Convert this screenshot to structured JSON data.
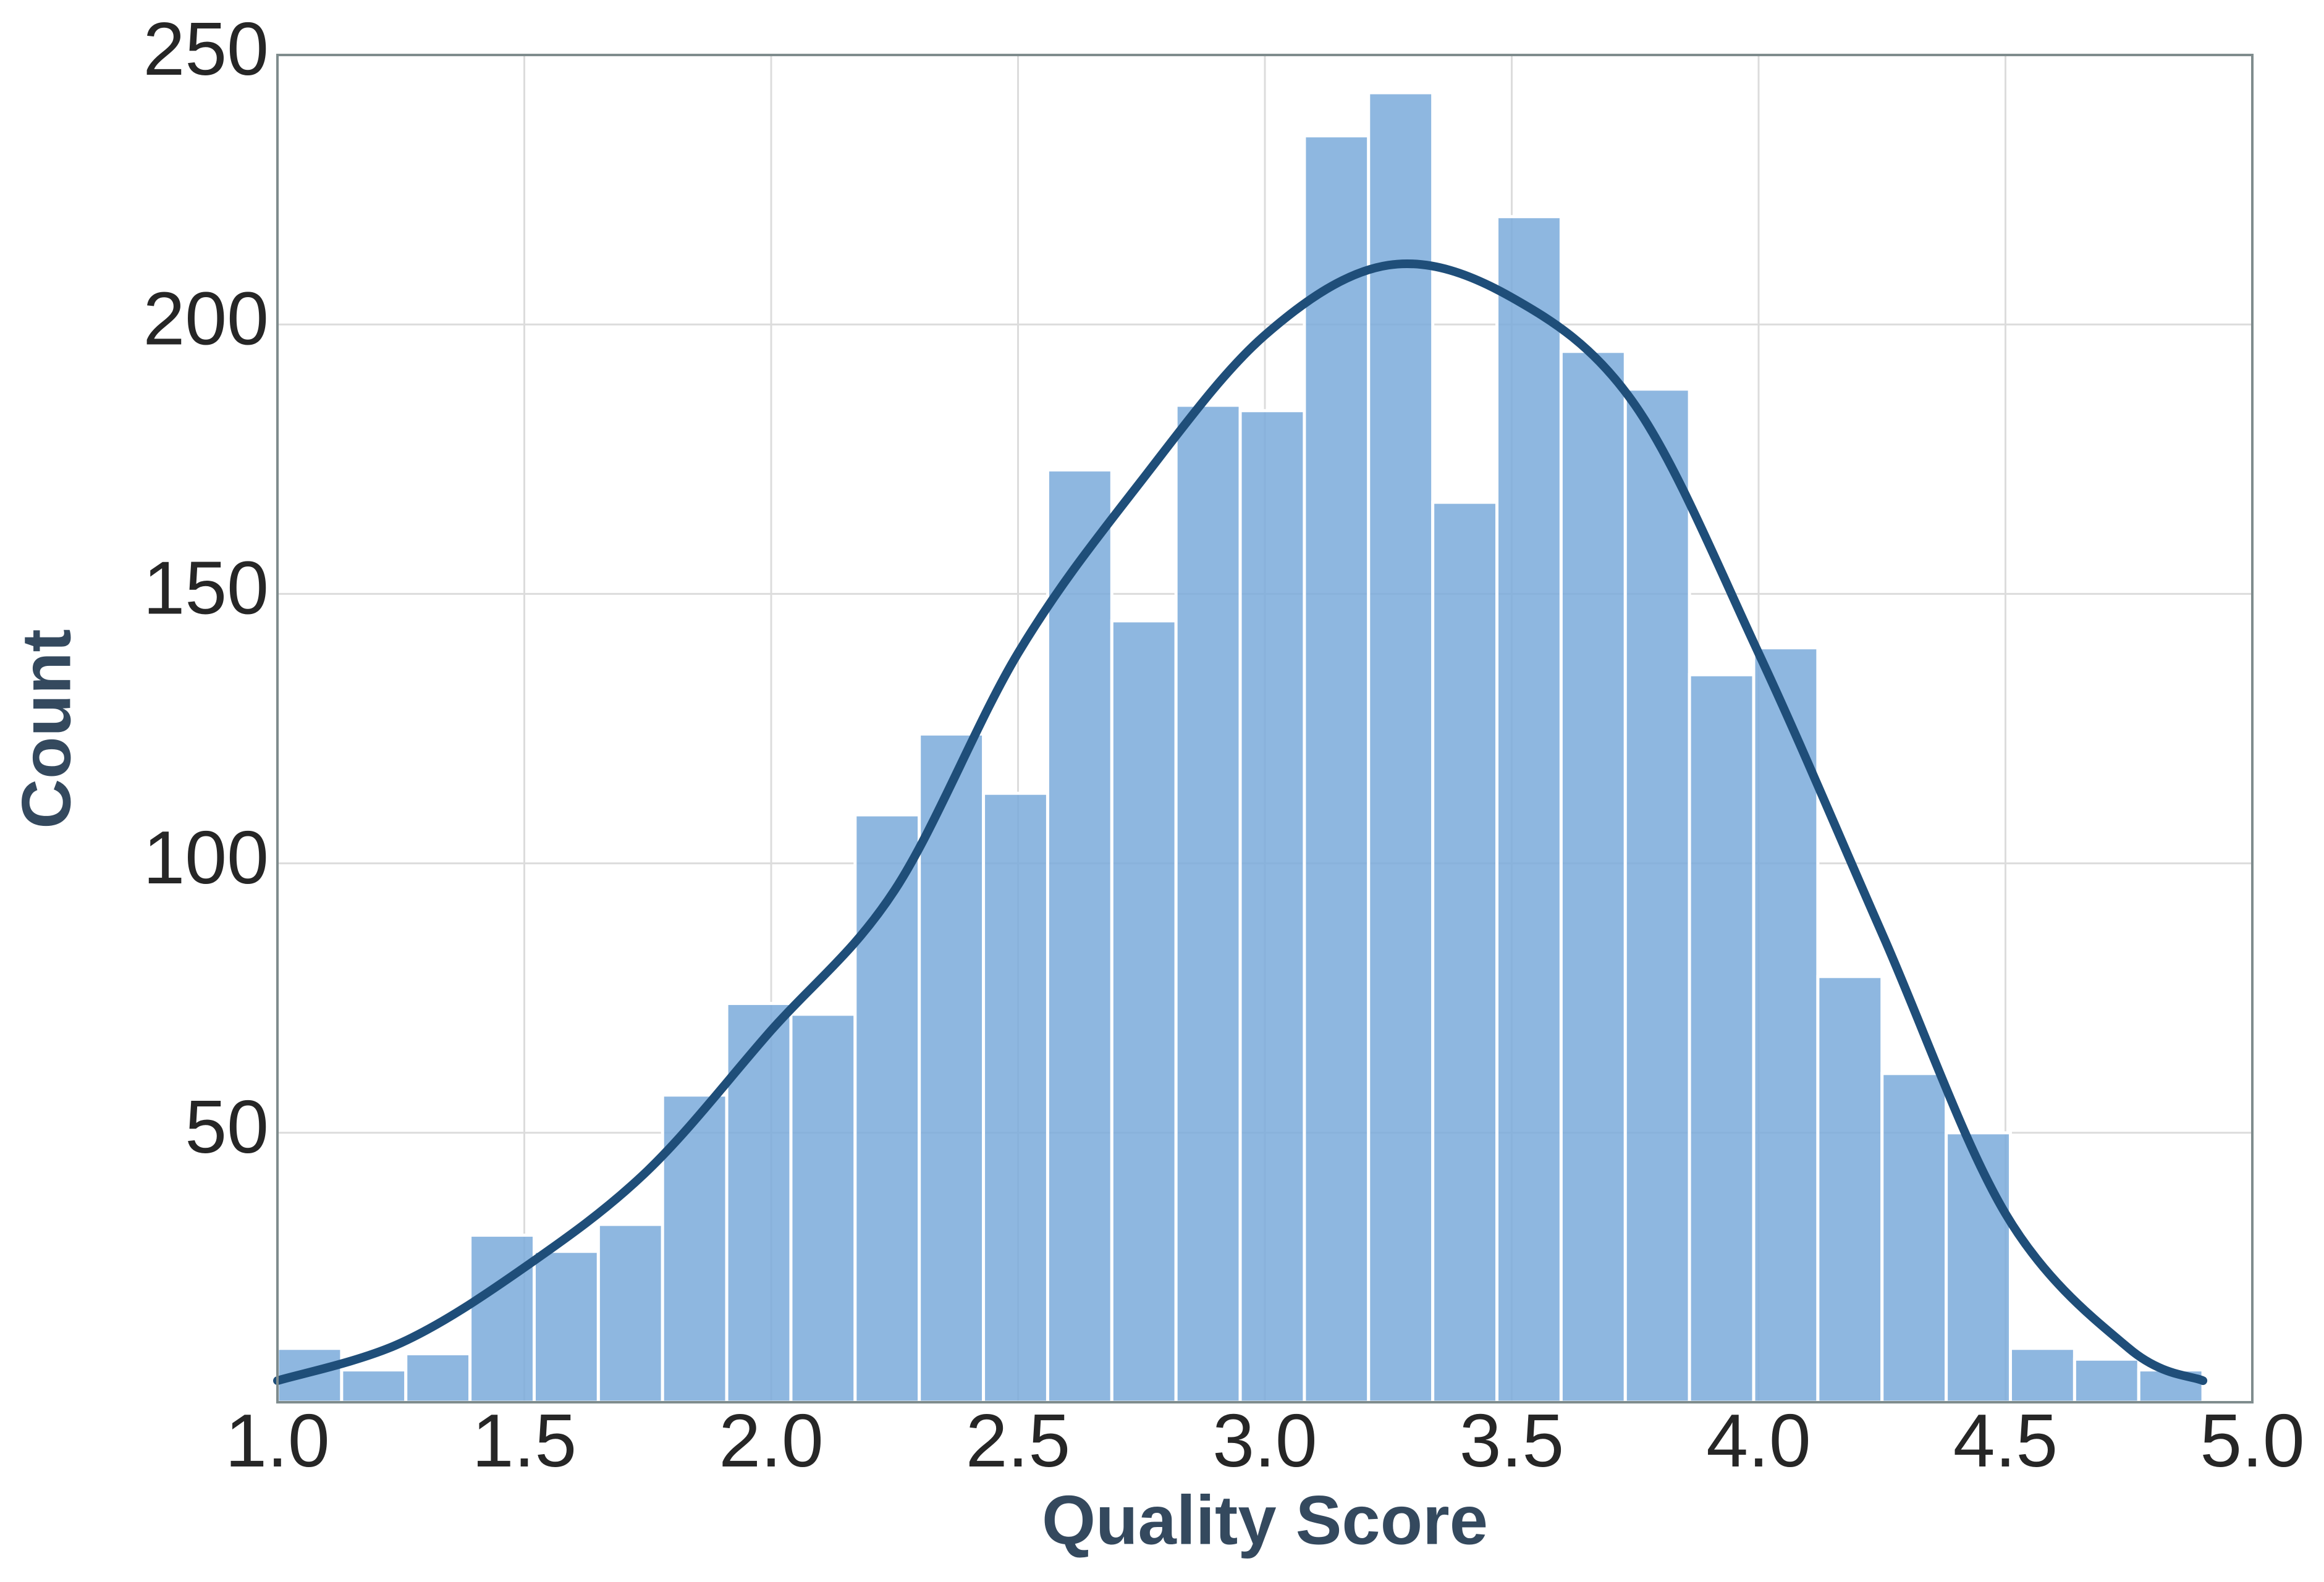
{
  "chart_data": {
    "type": "histogram",
    "x_label": "Quality Score",
    "y_label": "Count",
    "bins": [
      1.0,
      1.13,
      1.26,
      1.39,
      1.52,
      1.65,
      1.78,
      1.91,
      2.04,
      2.17,
      2.3,
      2.43,
      2.56,
      2.69,
      2.82,
      2.95,
      3.08,
      3.21,
      3.34,
      3.47,
      3.6,
      3.73,
      3.86,
      3.99,
      4.12,
      4.25,
      4.38,
      4.51,
      4.64,
      4.77,
      4.9
    ],
    "counts": [
      10,
      6,
      9,
      31,
      28,
      33,
      57,
      74,
      72,
      109,
      124,
      113,
      173,
      145,
      185,
      184,
      235,
      243,
      167,
      220,
      195,
      188,
      135,
      140,
      79,
      61,
      50,
      10,
      8,
      6
    ],
    "color": "#7aaadb",
    "edge_color": "#ffffff",
    "kde": {
      "color": "#1f4e79",
      "x": [
        1.0,
        1.25,
        1.5,
        1.75,
        2.0,
        2.25,
        2.5,
        2.75,
        3.0,
        3.25,
        3.5,
        3.75,
        4.0,
        4.25,
        4.5,
        4.75,
        4.9
      ],
      "values": [
        4,
        11,
        25,
        43,
        69,
        95,
        139,
        171,
        198,
        211,
        205,
        185,
        139,
        87,
        35,
        10,
        4
      ]
    },
    "xlim": [
      1.0,
      5.0
    ],
    "ylim": [
      0,
      250
    ],
    "xticks": [
      {
        "value": 1,
        "label": "1.0"
      },
      1.5,
      {
        "value": 2,
        "label": "2.0"
      },
      2.5,
      {
        "value": 3,
        "label": "3.0"
      },
      3.5,
      {
        "value": 4,
        "label": "4.0"
      },
      4.5,
      {
        "value": 5,
        "label": "5.0"
      }
    ],
    "yticks": [
      50,
      100,
      150,
      200,
      250
    ],
    "grid": true
  }
}
